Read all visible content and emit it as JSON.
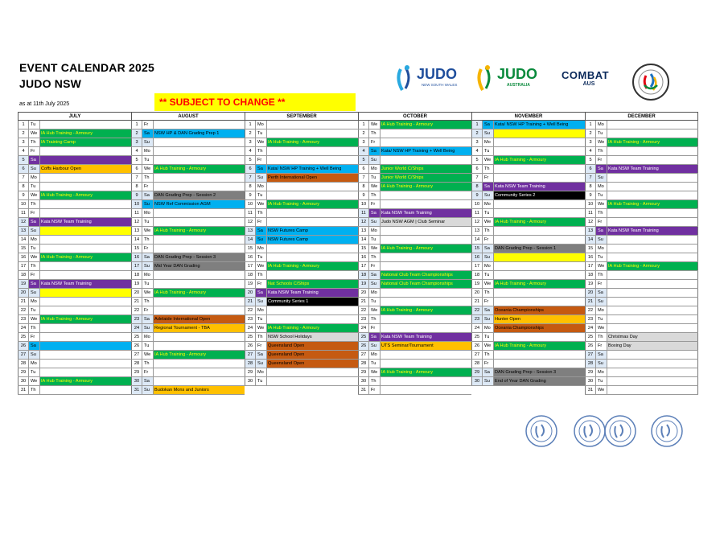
{
  "title": "EVENT CALENDAR 2025",
  "subtitle": "JUDO NSW",
  "as_at": "as at 11th July 2025",
  "notice": "** SUBJECT TO CHANGE **",
  "colors": {
    "green": "#00b050",
    "purple": "#7030a0",
    "blue": "#00b0f0",
    "yellow": "#ffff00",
    "orange": "#ffc000",
    "rust": "#c55a11",
    "black": "#000000",
    "grey": "#7f7f7f",
    "lightgrey": "#d9d9d9",
    "lightgreen": "#92d050",
    "weekend": "#dde9f6"
  },
  "logos": {
    "judo_nsw": {
      "text": "JUDO",
      "sub": "NEW SOUTH WALES"
    },
    "judo_aus": {
      "text": "JUDO",
      "sub": "AUSTRALIA"
    },
    "combat": {
      "text": "COMBAT",
      "sub": "AUS"
    }
  },
  "months": [
    {
      "name": "JULY",
      "rows": [
        [
          "1",
          "Tu",
          "",
          ""
        ],
        [
          "2",
          "We",
          "IA Hub Training - Armoury",
          "green"
        ],
        [
          "3",
          "Th",
          "IA Training Camp",
          "green"
        ],
        [
          "4",
          "Fr",
          "",
          ""
        ],
        [
          "5",
          "Sa",
          "",
          "purple"
        ],
        [
          "6",
          "Su",
          "Coffs Harbour Open",
          "orange"
        ],
        [
          "7",
          "Mo",
          "",
          ""
        ],
        [
          "8",
          "Tu",
          "",
          ""
        ],
        [
          "9",
          "We",
          "IA Hub Training - Armoury",
          "green"
        ],
        [
          "10",
          "Th",
          "",
          ""
        ],
        [
          "11",
          "Fr",
          "",
          ""
        ],
        [
          "12",
          "Sa",
          "Kata NSW Team Training",
          "purple"
        ],
        [
          "13",
          "Su",
          "",
          "yellow"
        ],
        [
          "14",
          "Mo",
          "",
          ""
        ],
        [
          "15",
          "Tu",
          "",
          ""
        ],
        [
          "16",
          "We",
          "IA Hub Training - Armoury",
          "green"
        ],
        [
          "17",
          "Th",
          "",
          ""
        ],
        [
          "18",
          "Fr",
          "",
          ""
        ],
        [
          "19",
          "Sa",
          "Kata NSW Team Training",
          "purple"
        ],
        [
          "20",
          "Su",
          "",
          "yellow"
        ],
        [
          "21",
          "Mo",
          "",
          ""
        ],
        [
          "22",
          "Tu",
          "",
          ""
        ],
        [
          "23",
          "We",
          "IA Hub Training - Armoury",
          "green"
        ],
        [
          "24",
          "Th",
          "",
          ""
        ],
        [
          "25",
          "Fr",
          "",
          ""
        ],
        [
          "26",
          "Sa",
          "",
          "blue"
        ],
        [
          "27",
          "Su",
          "",
          ""
        ],
        [
          "28",
          "Mo",
          "",
          ""
        ],
        [
          "29",
          "Tu",
          "",
          ""
        ],
        [
          "30",
          "We",
          "IA Hub Training - Armoury",
          "green"
        ],
        [
          "31",
          "Th",
          "",
          ""
        ]
      ]
    },
    {
      "name": "AUGUST",
      "rows": [
        [
          "1",
          "Fr",
          "",
          ""
        ],
        [
          "2",
          "Sa",
          "NSW HP & DAN Grading Prep 1",
          "blue"
        ],
        [
          "3",
          "Su",
          "",
          ""
        ],
        [
          "4",
          "Mo",
          "",
          ""
        ],
        [
          "5",
          "Tu",
          "",
          ""
        ],
        [
          "6",
          "We",
          "IA Hub Training - Armoury",
          "green"
        ],
        [
          "7",
          "Th",
          "",
          ""
        ],
        [
          "8",
          "Fr",
          "",
          ""
        ],
        [
          "9",
          "Sa",
          "DAN Grading Prep - Session 2",
          "grey"
        ],
        [
          "10",
          "Su",
          "NSW Ref Commission AGM",
          "blue"
        ],
        [
          "11",
          "Mo",
          "",
          ""
        ],
        [
          "12",
          "Tu",
          "",
          ""
        ],
        [
          "13",
          "We",
          "IA Hub Training - Armoury",
          "green"
        ],
        [
          "14",
          "Th",
          "",
          ""
        ],
        [
          "15",
          "Fr",
          "",
          ""
        ],
        [
          "16",
          "Sa",
          "DAN Grading Prep - Session 3",
          "grey"
        ],
        [
          "17",
          "Su",
          "Mid Year DAN Grading",
          "grey"
        ],
        [
          "18",
          "Mo",
          "",
          ""
        ],
        [
          "19",
          "Tu",
          "",
          ""
        ],
        [
          "20",
          "We",
          "IA Hub Training - Armoury",
          "green"
        ],
        [
          "21",
          "Th",
          "",
          ""
        ],
        [
          "22",
          "Fr",
          "",
          ""
        ],
        [
          "23",
          "Sa",
          "Adelaide International Open",
          "rust"
        ],
        [
          "24",
          "Su",
          "Regional Tournament - TBA",
          "orange"
        ],
        [
          "25",
          "Mo",
          "",
          ""
        ],
        [
          "26",
          "Tu",
          "",
          ""
        ],
        [
          "27",
          "We",
          "IA Hub Training - Armoury",
          "green"
        ],
        [
          "28",
          "Th",
          "",
          ""
        ],
        [
          "29",
          "Fr",
          "",
          ""
        ],
        [
          "30",
          "Sa",
          "",
          ""
        ],
        [
          "31",
          "Su",
          "Budokan Mons and Juniors",
          "orange"
        ]
      ]
    },
    {
      "name": "SEPTEMBER",
      "rows": [
        [
          "1",
          "Mo",
          "",
          ""
        ],
        [
          "2",
          "Tu",
          "",
          ""
        ],
        [
          "3",
          "We",
          "IA Hub Training - Armoury",
          "green"
        ],
        [
          "4",
          "Th",
          "",
          ""
        ],
        [
          "5",
          "Fr",
          "",
          ""
        ],
        [
          "6",
          "Sa",
          "Kata/ NSW HP Training + Well Being",
          "blue"
        ],
        [
          "7",
          "Su",
          "Perth International Open",
          "rust"
        ],
        [
          "8",
          "Mo",
          "",
          ""
        ],
        [
          "9",
          "Tu",
          "",
          ""
        ],
        [
          "10",
          "We",
          "IA Hub Training - Armoury",
          "green"
        ],
        [
          "11",
          "Th",
          "",
          ""
        ],
        [
          "12",
          "Fr",
          "",
          ""
        ],
        [
          "13",
          "Sa",
          "NSW Futures Camp",
          "blue"
        ],
        [
          "14",
          "Su",
          "NSW Futures Camp",
          "blue"
        ],
        [
          "15",
          "Mo",
          "",
          ""
        ],
        [
          "16",
          "Tu",
          "",
          ""
        ],
        [
          "17",
          "We",
          "IA Hub Training - Armoury",
          "green"
        ],
        [
          "18",
          "Th",
          "",
          ""
        ],
        [
          "19",
          "Fr",
          "Nat Schools C/Ships",
          "green"
        ],
        [
          "20",
          "Sa",
          "Kata NSW Team Training",
          "purple"
        ],
        [
          "21",
          "Su",
          "Community Series 1",
          "black"
        ],
        [
          "22",
          "Mo",
          "",
          ""
        ],
        [
          "23",
          "Tu",
          "",
          ""
        ],
        [
          "24",
          "We",
          "IA Hub Training - Armoury",
          "green"
        ],
        [
          "25",
          "Th",
          "NSW School Holidays",
          "lightgrey"
        ],
        [
          "26",
          "Fr",
          "Queensland Open",
          "rust"
        ],
        [
          "27",
          "Sa",
          "Queensland Open",
          "rust"
        ],
        [
          "28",
          "Su",
          "Queensland Open",
          "rust"
        ],
        [
          "29",
          "Mo",
          "",
          ""
        ],
        [
          "30",
          "Tu",
          "",
          ""
        ]
      ]
    },
    {
      "name": "OCTOBER",
      "rows": [
        [
          "1",
          "We",
          "IA Hub Training - Armoury",
          "green"
        ],
        [
          "2",
          "Th",
          "",
          ""
        ],
        [
          "3",
          "Fr",
          "",
          ""
        ],
        [
          "4",
          "Sa",
          "Kata/ NSW HP Training + Well Being",
          "blue"
        ],
        [
          "5",
          "Su",
          "",
          ""
        ],
        [
          "6",
          "Mo",
          "Junior World C/Ships",
          "green"
        ],
        [
          "7",
          "Tu",
          "Junior World C/Ships",
          "green"
        ],
        [
          "8",
          "We",
          "IA Hub Training - Armoury",
          "green"
        ],
        [
          "9",
          "Th",
          "",
          ""
        ],
        [
          "10",
          "Fr",
          "",
          ""
        ],
        [
          "11",
          "Sa",
          "Kata NSW Team Training",
          "purple"
        ],
        [
          "12",
          "Su",
          "Judo NSW AGM | Club Seminar",
          "lightgrey"
        ],
        [
          "13",
          "Mo",
          "",
          ""
        ],
        [
          "14",
          "Tu",
          "",
          ""
        ],
        [
          "15",
          "We",
          "IA Hub Training - Armoury",
          "green"
        ],
        [
          "16",
          "Th",
          "",
          ""
        ],
        [
          "17",
          "Fr",
          "",
          ""
        ],
        [
          "18",
          "Sa",
          "National Club Team Championships",
          "green"
        ],
        [
          "19",
          "Su",
          "National Club Team Championships",
          "green"
        ],
        [
          "20",
          "Mo",
          "",
          ""
        ],
        [
          "21",
          "Tu",
          "",
          ""
        ],
        [
          "22",
          "We",
          "IA Hub Training - Armoury",
          "green"
        ],
        [
          "23",
          "Th",
          "",
          ""
        ],
        [
          "24",
          "Fr",
          "",
          ""
        ],
        [
          "25",
          "Sa",
          "Kata NSW Team Training",
          "purple"
        ],
        [
          "26",
          "Su",
          "UTS Seminar/Tournament",
          "orange"
        ],
        [
          "27",
          "Mo",
          "",
          ""
        ],
        [
          "28",
          "Tu",
          "",
          ""
        ],
        [
          "29",
          "We",
          "IA Hub Training - Armoury",
          "green"
        ],
        [
          "30",
          "Th",
          "",
          ""
        ],
        [
          "31",
          "Fr",
          "",
          ""
        ]
      ]
    },
    {
      "name": "NOVEMBER",
      "rows": [
        [
          "1",
          "Sa",
          "Kata/ NSW HP Training + Well Being",
          "blue"
        ],
        [
          "2",
          "Su",
          "",
          "yellow"
        ],
        [
          "3",
          "Mo",
          "",
          ""
        ],
        [
          "4",
          "Tu",
          "",
          ""
        ],
        [
          "5",
          "We",
          "IA Hub Training - Armoury",
          "green"
        ],
        [
          "6",
          "Th",
          "",
          ""
        ],
        [
          "7",
          "Fr",
          "",
          ""
        ],
        [
          "8",
          "Sa",
          "Kata NSW Team Training",
          "purple"
        ],
        [
          "9",
          "Su",
          "Community Series 2",
          "black"
        ],
        [
          "10",
          "Mo",
          "",
          ""
        ],
        [
          "11",
          "Tu",
          "",
          ""
        ],
        [
          "12",
          "We",
          "IA Hub Training - Armoury",
          "green"
        ],
        [
          "13",
          "Th",
          "",
          ""
        ],
        [
          "14",
          "Fr",
          "",
          ""
        ],
        [
          "15",
          "Sa",
          "DAN Grading Prep - Session 1",
          "grey"
        ],
        [
          "16",
          "Su",
          "",
          "yellow"
        ],
        [
          "17",
          "Mo",
          "",
          ""
        ],
        [
          "18",
          "Tu",
          "",
          ""
        ],
        [
          "19",
          "We",
          "IA Hub Training - Armoury",
          "green"
        ],
        [
          "20",
          "Th",
          "",
          ""
        ],
        [
          "21",
          "Fr",
          "",
          ""
        ],
        [
          "22",
          "Sa",
          "Oceania Championships",
          "rust"
        ],
        [
          "23",
          "Su",
          "Hunter Open",
          "orange"
        ],
        [
          "24",
          "Mo",
          "Oceania Championships",
          "rust"
        ],
        [
          "25",
          "Tu",
          "",
          ""
        ],
        [
          "26",
          "We",
          "IA Hub Training - Armoury",
          "green"
        ],
        [
          "27",
          "Th",
          "",
          ""
        ],
        [
          "28",
          "Fr",
          "",
          ""
        ],
        [
          "29",
          "Sa",
          "DAN Grading Prep - Session 3",
          "grey"
        ],
        [
          "30",
          "Su",
          "End of Year DAN Grading",
          "grey"
        ]
      ]
    },
    {
      "name": "DECEMBER",
      "rows": [
        [
          "1",
          "Mo",
          "",
          ""
        ],
        [
          "2",
          "Tu",
          "",
          ""
        ],
        [
          "3",
          "We",
          "IA Hub Training - Armoury",
          "green"
        ],
        [
          "4",
          "Th",
          "",
          ""
        ],
        [
          "5",
          "Fr",
          "",
          ""
        ],
        [
          "6",
          "Sa",
          "Kata NSW Team Training",
          "purple"
        ],
        [
          "7",
          "Su",
          "",
          ""
        ],
        [
          "8",
          "Mo",
          "",
          ""
        ],
        [
          "9",
          "Tu",
          "",
          ""
        ],
        [
          "10",
          "We",
          "IA Hub Training - Armoury",
          "green"
        ],
        [
          "11",
          "Th",
          "",
          ""
        ],
        [
          "12",
          "Fr",
          "",
          ""
        ],
        [
          "13",
          "Sa",
          "Kata NSW Team Training",
          "purple"
        ],
        [
          "14",
          "Su",
          "",
          ""
        ],
        [
          "15",
          "Mo",
          "",
          ""
        ],
        [
          "16",
          "Tu",
          "",
          ""
        ],
        [
          "17",
          "We",
          "IA Hub Training - Armoury",
          "green"
        ],
        [
          "18",
          "Th",
          "",
          ""
        ],
        [
          "19",
          "Fr",
          "",
          ""
        ],
        [
          "20",
          "Sa",
          "",
          ""
        ],
        [
          "21",
          "Su",
          "",
          ""
        ],
        [
          "22",
          "Mo",
          "",
          ""
        ],
        [
          "23",
          "Tu",
          "",
          ""
        ],
        [
          "24",
          "We",
          "",
          ""
        ],
        [
          "25",
          "Th",
          "Christmas Day",
          "lightgrey"
        ],
        [
          "26",
          "Fr",
          "Boxing Day",
          "lightgrey"
        ],
        [
          "27",
          "Sa",
          "",
          ""
        ],
        [
          "28",
          "Su",
          "",
          ""
        ],
        [
          "29",
          "Mo",
          "",
          ""
        ],
        [
          "30",
          "Tu",
          "",
          ""
        ],
        [
          "31",
          "We",
          "",
          ""
        ]
      ]
    }
  ]
}
